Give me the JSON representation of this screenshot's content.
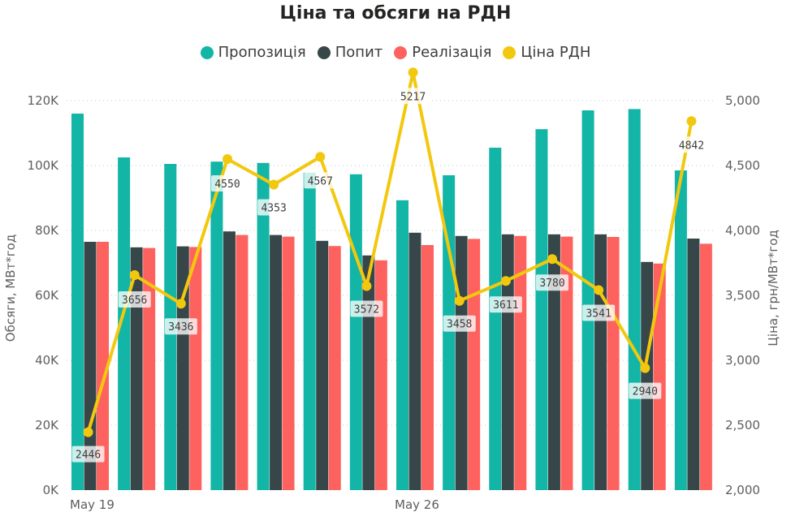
{
  "chart_data": {
    "type": "bar+line",
    "title": "Ціна та обсяги на РДН",
    "legend_position": "top",
    "colors": {
      "Пропозиція": "#12b5a6",
      "Попит": "#374649",
      "Реалізація": "#fd625e",
      "Ціна РДН": "#f2c80f"
    },
    "x_tick_labels": [
      "May 19",
      "May 26"
    ],
    "x_tick_indices": [
      0,
      7
    ],
    "series": [
      {
        "name": "Пропозиція",
        "kind": "bar",
        "axis": "left",
        "values": [
          116000,
          102500,
          100500,
          101200,
          100800,
          97800,
          97300,
          89300,
          97000,
          105500,
          111200,
          117000,
          117400,
          98500
        ]
      },
      {
        "name": "Попит",
        "kind": "bar",
        "axis": "left",
        "values": [
          76500,
          74800,
          75100,
          79700,
          78600,
          76800,
          72300,
          79300,
          78300,
          78800,
          78800,
          78800,
          70300,
          77500
        ]
      },
      {
        "name": "Реалізація",
        "kind": "bar",
        "axis": "left",
        "values": [
          76500,
          74600,
          74900,
          78600,
          78100,
          75200,
          70800,
          75500,
          77400,
          78300,
          78100,
          78000,
          69800,
          75900
        ]
      },
      {
        "name": "Ціна РДН",
        "kind": "line",
        "axis": "right",
        "values": [
          2446,
          3656,
          3436,
          4550,
          4353,
          4567,
          3572,
          5217,
          3458,
          3611,
          3780,
          3541,
          2940,
          4842
        ]
      }
    ],
    "price_labels": [
      "2446",
      "3656",
      "3436",
      "4550",
      "4353",
      "4567",
      "3572",
      "5217",
      "3458",
      "3611",
      "3780",
      "3541",
      "2940",
      "4842"
    ],
    "left_axis": {
      "label": "Обсяги, МВт*год",
      "ylim": [
        0,
        120000
      ],
      "ticks": [
        0,
        20000,
        40000,
        60000,
        80000,
        100000,
        120000
      ],
      "tick_labels": [
        "0K",
        "20K",
        "40K",
        "60K",
        "80K",
        "100K",
        "120K"
      ]
    },
    "right_axis": {
      "label": "Ціна, грн/МВт*год",
      "ylim": [
        2000,
        5000
      ],
      "ticks": [
        2000,
        2500,
        3000,
        3500,
        4000,
        4500,
        5000
      ],
      "tick_labels": [
        "2,000",
        "2,500",
        "3,000",
        "3,500",
        "4,000",
        "4,500",
        "5,000"
      ]
    },
    "gridlines": "horizontal dotted"
  }
}
